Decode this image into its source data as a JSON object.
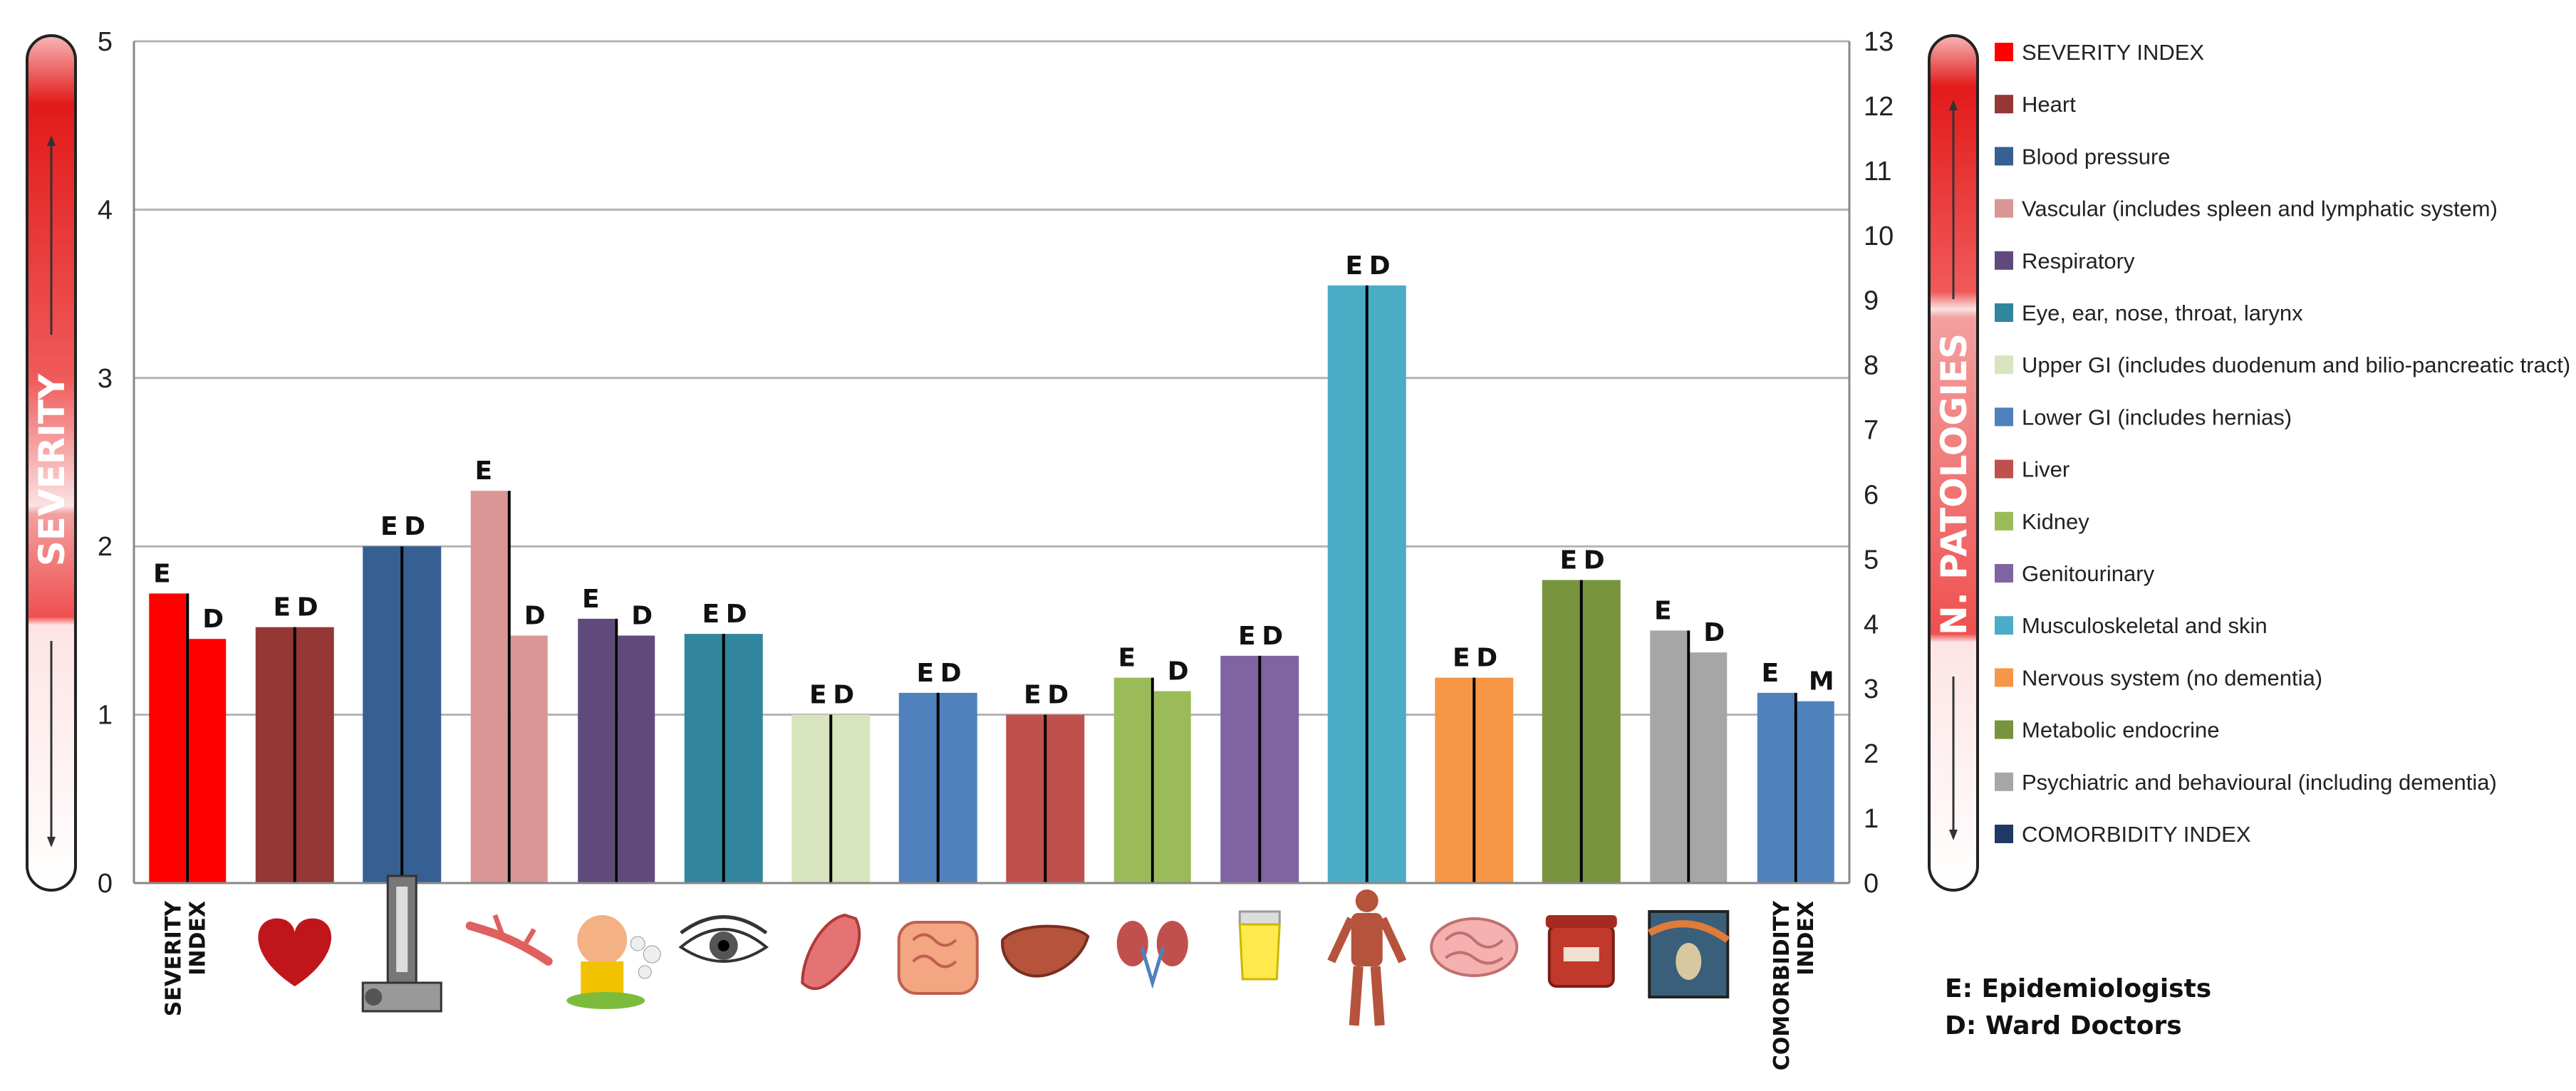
{
  "chart_data": {
    "type": "bar",
    "left_axis": {
      "title": "SEVERITY",
      "ylim": [
        0,
        5
      ],
      "ticks": [
        "0",
        "1",
        "2",
        "3",
        "4",
        "5"
      ]
    },
    "right_axis": {
      "title": "N. PATOLOGIES",
      "ylim": [
        0,
        13
      ],
      "ticks": [
        "0",
        "1",
        "2",
        "3",
        "4",
        "5",
        "6",
        "7",
        "8",
        "9",
        "10",
        "11",
        "12",
        "13"
      ]
    },
    "grid": true,
    "categories": [
      {
        "name": "SEVERITY INDEX",
        "label_lines": [
          "SEVERITY",
          "INDEX"
        ],
        "color": "#ff0000",
        "bars": [
          {
            "tag": "E",
            "value": 1.72
          },
          {
            "tag": "D",
            "value": 1.45
          }
        ]
      },
      {
        "name": "Heart",
        "icon": "heart-icon",
        "color": "#953735",
        "bars": [
          {
            "tag": "E",
            "value": 1.52
          },
          {
            "tag": "D",
            "value": 1.52
          }
        ]
      },
      {
        "name": "Blood pressure",
        "icon": "blood-pressure-gauge-icon",
        "color": "#366092",
        "bars": [
          {
            "tag": "E",
            "value": 2.0
          },
          {
            "tag": "D",
            "value": 2.0
          }
        ]
      },
      {
        "name": "Vascular (includes spleen and lymphatic system)",
        "icon": "blood-vessel-icon",
        "color": "#d99694",
        "bars": [
          {
            "tag": "E",
            "value": 2.33
          },
          {
            "tag": "D",
            "value": 1.47
          }
        ]
      },
      {
        "name": "Respiratory",
        "icon": "coughing-person-icon",
        "color": "#604a7b",
        "bars": [
          {
            "tag": "E",
            "value": 1.57
          },
          {
            "tag": "D",
            "value": 1.47
          }
        ]
      },
      {
        "name": "Eye, ear, nose, throat, larynx",
        "icon": "eye-icon",
        "color": "#31859c",
        "bars": [
          {
            "tag": "E",
            "value": 1.48
          },
          {
            "tag": "D",
            "value": 1.48
          }
        ]
      },
      {
        "name": "Upper GI (includes duodenum and bilio-pancreatic tract)",
        "icon": "stomach-icon",
        "color": "#d7e4bd",
        "bars": [
          {
            "tag": "E",
            "value": 1.0
          },
          {
            "tag": "D",
            "value": 1.0
          }
        ]
      },
      {
        "name": "Lower GI (includes hernias)",
        "icon": "intestine-icon",
        "color": "#4f81bd",
        "bars": [
          {
            "tag": "E",
            "value": 1.13
          },
          {
            "tag": "D",
            "value": 1.13
          }
        ]
      },
      {
        "name": "Liver",
        "icon": "liver-icon",
        "color": "#c0504d",
        "bars": [
          {
            "tag": "E",
            "value": 1.0
          },
          {
            "tag": "D",
            "value": 1.0
          }
        ]
      },
      {
        "name": "Kidney",
        "icon": "kidneys-icon",
        "color": "#9bbb59",
        "bars": [
          {
            "tag": "E",
            "value": 1.22
          },
          {
            "tag": "D",
            "value": 1.14
          }
        ]
      },
      {
        "name": "Genitourinary",
        "icon": "urine-cup-icon",
        "color": "#8064a2",
        "bars": [
          {
            "tag": "E",
            "value": 1.35
          },
          {
            "tag": "D",
            "value": 1.35
          }
        ]
      },
      {
        "name": "Musculoskeletal and skin",
        "icon": "muscle-figure-icon",
        "color": "#4bacc6",
        "bars": [
          {
            "tag": "E",
            "value": 3.55
          },
          {
            "tag": "D",
            "value": 3.55
          }
        ]
      },
      {
        "name": "Nervous system (no dementia)",
        "icon": "brain-icon",
        "color": "#f79646",
        "bars": [
          {
            "tag": "E",
            "value": 1.22
          },
          {
            "tag": "D",
            "value": 1.22
          }
        ]
      },
      {
        "name": "Metabolic endocrine",
        "icon": "sugar-jar-icon",
        "color": "#77933c",
        "bars": [
          {
            "tag": "E",
            "value": 1.8
          },
          {
            "tag": "D",
            "value": 1.8
          }
        ]
      },
      {
        "name": "Psychiatric and behavioural (including dementia)",
        "icon": "scream-painting-icon",
        "color": "#a6a6a6",
        "bars": [
          {
            "tag": "E",
            "value": 1.5
          },
          {
            "tag": "D",
            "value": 1.37
          }
        ]
      },
      {
        "name": "COMORBIDITY INDEX",
        "label_lines": [
          "COMORBIDITY",
          "INDEX"
        ],
        "color": "#4f81bd",
        "bars": [
          {
            "tag": "E",
            "value": 1.13
          },
          {
            "tag": "M",
            "value": 1.08
          }
        ]
      }
    ],
    "legend": {
      "placement": "right",
      "entries": [
        {
          "label": "SEVERITY INDEX",
          "color": "#ff0000"
        },
        {
          "label": "Heart",
          "color": "#953735"
        },
        {
          "label": "Blood pressure",
          "color": "#366092"
        },
        {
          "label": "Vascular (includes spleen and lymphatic system)",
          "color": "#d99694"
        },
        {
          "label": "Respiratory",
          "color": "#604a7b"
        },
        {
          "label": "Eye, ear, nose, throat, larynx",
          "color": "#31859c"
        },
        {
          "label": "Upper GI (includes duodenum and bilio-pancreatic tract)",
          "color": "#d7e4bd"
        },
        {
          "label": "Lower GI (includes hernias)",
          "color": "#4f81bd"
        },
        {
          "label": "Liver",
          "color": "#c0504d"
        },
        {
          "label": "Kidney",
          "color": "#9bbb59"
        },
        {
          "label": "Genitourinary",
          "color": "#8064a2"
        },
        {
          "label": "Musculoskeletal and skin",
          "color": "#4bacc6"
        },
        {
          "label": "Nervous system (no dementia)",
          "color": "#f79646"
        },
        {
          "label": "Metabolic endocrine",
          "color": "#77933c"
        },
        {
          "label": "Psychiatric and behavioural (including dementia)",
          "color": "#a6a6a6"
        },
        {
          "label": "COMORBIDITY INDEX",
          "color": "#1f3864"
        }
      ]
    },
    "notes": [
      "E: Epidemiologists",
      "D: Ward Doctors"
    ]
  }
}
